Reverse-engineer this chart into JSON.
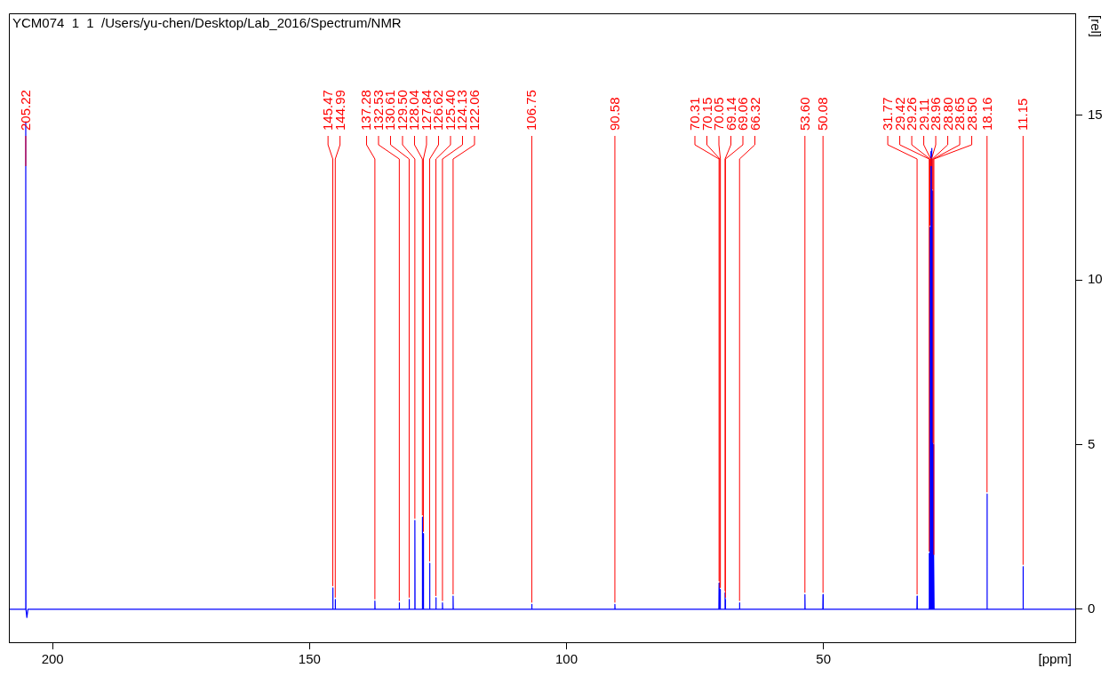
{
  "chart_data": {
    "type": "line",
    "title": "YCM074  1  1  /Users/yu-chen/Desktop/Lab_2016/Spectrum/NMR",
    "xlabel": "[ppm]",
    "ylabel": "[rel]",
    "xlim": [
      208.5,
      1
    ],
    "xticks": [
      200,
      150,
      100,
      50
    ],
    "ylim": [
      -1,
      18.1
    ],
    "yticks": [
      0,
      5,
      10,
      15
    ],
    "grid": false,
    "legend": false,
    "marker": "none",
    "line_style": "solid",
    "series": [
      {
        "color": "#0000ff",
        "x": [
          208.5,
          205.26,
          205.22,
          205.18,
          205.0,
          204.8,
          145.51,
          145.47,
          145.43,
          145.03,
          144.99,
          144.95,
          137.32,
          137.28,
          137.24,
          132.57,
          132.53,
          132.49,
          130.65,
          130.61,
          130.57,
          129.54,
          129.5,
          129.46,
          128.08,
          128.04,
          128.0,
          127.88,
          127.84,
          127.8,
          126.66,
          126.62,
          126.58,
          125.44,
          125.4,
          125.36,
          124.17,
          124.13,
          124.09,
          122.1,
          122.06,
          122.02,
          106.79,
          106.75,
          106.71,
          90.62,
          90.58,
          90.54,
          70.35,
          70.31,
          70.27,
          70.19,
          70.15,
          70.11,
          70.09,
          70.05,
          70.01,
          69.18,
          69.14,
          69.1,
          69.08,
          69.06,
          69.02,
          66.36,
          66.32,
          66.28,
          53.64,
          53.6,
          53.56,
          50.12,
          50.08,
          50.04,
          31.81,
          31.77,
          31.73,
          29.46,
          29.42,
          29.38,
          29.3,
          29.26,
          29.22,
          29.15,
          29.11,
          29.07,
          29.0,
          28.96,
          28.92,
          28.84,
          28.8,
          28.76,
          28.69,
          28.65,
          28.61,
          28.54,
          28.5,
          28.46,
          18.2,
          18.16,
          18.12,
          11.19,
          11.15,
          11.11,
          1
        ],
        "values": [
          0,
          0,
          14.8,
          0,
          -0.25,
          0,
          0,
          0.65,
          0,
          0,
          0.3,
          0,
          0,
          0.25,
          0,
          0,
          0.2,
          0,
          0,
          0.3,
          0,
          0,
          2.7,
          0,
          0,
          2.8,
          0,
          0,
          2.3,
          0,
          0,
          1.4,
          0,
          0,
          0.35,
          0,
          0,
          0.2,
          0,
          0,
          0.4,
          0,
          0,
          0.15,
          0,
          0,
          0.15,
          0,
          0,
          0.8,
          0,
          0,
          0.6,
          0,
          0,
          0.6,
          0,
          0,
          0.5,
          0,
          0,
          0.3,
          0,
          0,
          0.2,
          0,
          0,
          0.45,
          0,
          0,
          0.45,
          0,
          0,
          0.4,
          0,
          0,
          1.7,
          0,
          0,
          11.6,
          0,
          0,
          13.9,
          0,
          0,
          14,
          0,
          0,
          12.7,
          0,
          0,
          5,
          0,
          0,
          1.6,
          0,
          0,
          3.5,
          0,
          0,
          1.3,
          0,
          0
        ]
      }
    ],
    "annotations": [
      {
        "text": "205.22",
        "x": 205.22,
        "y": 14.8
      },
      {
        "text": "145.47",
        "x": 145.47,
        "y": 0.65
      },
      {
        "text": "144.99",
        "x": 144.99,
        "y": 0.3
      },
      {
        "text": "137.28",
        "x": 137.28,
        "y": 0.25
      },
      {
        "text": "132.53",
        "x": 132.53,
        "y": 0.2
      },
      {
        "text": "130.61",
        "x": 130.61,
        "y": 0.3
      },
      {
        "text": "129.50",
        "x": 129.5,
        "y": 2.7
      },
      {
        "text": "128.04",
        "x": 128.04,
        "y": 2.8
      },
      {
        "text": "127.84",
        "x": 127.84,
        "y": 2.3
      },
      {
        "text": "126.62",
        "x": 126.62,
        "y": 1.4
      },
      {
        "text": "125.40",
        "x": 125.4,
        "y": 0.35
      },
      {
        "text": "124.13",
        "x": 124.13,
        "y": 0.2
      },
      {
        "text": "122.06",
        "x": 122.06,
        "y": 0.4
      },
      {
        "text": "106.75",
        "x": 106.75,
        "y": 0.15
      },
      {
        "text": "90.58",
        "x": 90.58,
        "y": 0.15
      },
      {
        "text": "70.31",
        "x": 70.31,
        "y": 0.8
      },
      {
        "text": "70.15",
        "x": 70.15,
        "y": 0.6
      },
      {
        "text": "70.05",
        "x": 70.05,
        "y": 0.6
      },
      {
        "text": "69.14",
        "x": 69.14,
        "y": 0.5
      },
      {
        "text": "69.06",
        "x": 69.06,
        "y": 0.3
      },
      {
        "text": "66.32",
        "x": 66.32,
        "y": 0.2
      },
      {
        "text": "53.60",
        "x": 53.6,
        "y": 0.45
      },
      {
        "text": "50.08",
        "x": 50.08,
        "y": 0.45
      },
      {
        "text": "31.77",
        "x": 31.77,
        "y": 0.4
      },
      {
        "text": "29.42",
        "x": 29.42,
        "y": 1.7
      },
      {
        "text": "29.26",
        "x": 29.26,
        "y": 11.6
      },
      {
        "text": "29.11",
        "x": 29.11,
        "y": 13.9
      },
      {
        "text": "28.96",
        "x": 28.96,
        "y": 14
      },
      {
        "text": "28.80",
        "x": 28.8,
        "y": 12.7
      },
      {
        "text": "28.65",
        "x": 28.65,
        "y": 5
      },
      {
        "text": "28.50",
        "x": 28.5,
        "y": 1.6
      },
      {
        "text": "18.16",
        "x": 18.16,
        "y": 3.5
      },
      {
        "text": "11.15",
        "x": 11.15,
        "y": 1.3
      }
    ]
  }
}
